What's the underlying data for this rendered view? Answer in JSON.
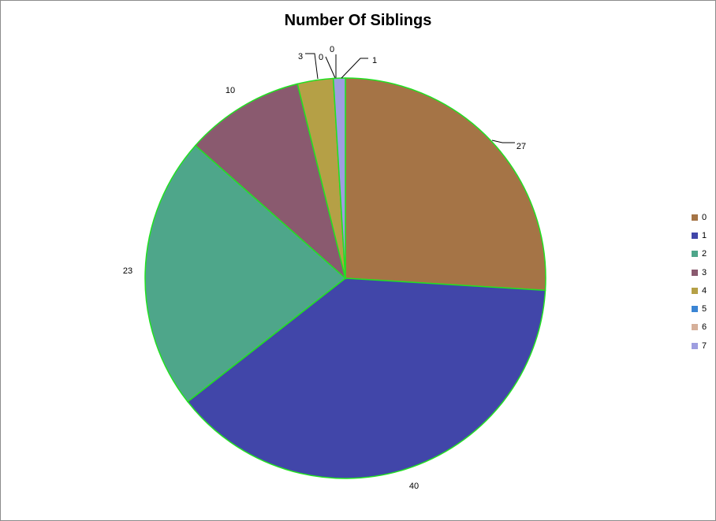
{
  "chart_data": {
    "type": "pie",
    "title": "Number Of Siblings",
    "slice_border_color": "#22e022",
    "slices": [
      {
        "label": "0",
        "value": 27,
        "color": "#a57446"
      },
      {
        "label": "1",
        "value": 40,
        "color": "#4146a9"
      },
      {
        "label": "2",
        "value": 23,
        "color": "#4ea68a"
      },
      {
        "label": "3",
        "value": 10,
        "color": "#8a5a6f"
      },
      {
        "label": "4",
        "value": 3,
        "color": "#b5a046"
      },
      {
        "label": "5",
        "value": 0,
        "color": "#3b85d4"
      },
      {
        "label": "6",
        "value": 0,
        "color": "#d6b09a"
      },
      {
        "label": "7",
        "value": 1,
        "color": "#9e9ee0"
      }
    ],
    "legend_position": "right"
  }
}
